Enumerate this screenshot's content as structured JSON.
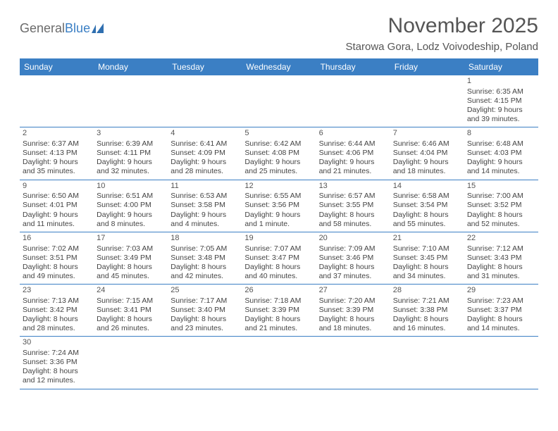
{
  "brand": {
    "part1": "General",
    "part2": "Blue"
  },
  "title": "November 2025",
  "location": "Starowa Gora, Lodz Voivodeship, Poland",
  "colors": {
    "header_bg": "#3b7fc4",
    "header_text": "#ffffff",
    "row_border": "#3b7fc4",
    "text": "#444444",
    "title_text": "#555555"
  },
  "day_headers": [
    "Sunday",
    "Monday",
    "Tuesday",
    "Wednesday",
    "Thursday",
    "Friday",
    "Saturday"
  ],
  "weeks": [
    [
      null,
      null,
      null,
      null,
      null,
      null,
      {
        "n": "1",
        "sunrise": "Sunrise: 6:35 AM",
        "sunset": "Sunset: 4:15 PM",
        "dl1": "Daylight: 9 hours",
        "dl2": "and 39 minutes."
      }
    ],
    [
      {
        "n": "2",
        "sunrise": "Sunrise: 6:37 AM",
        "sunset": "Sunset: 4:13 PM",
        "dl1": "Daylight: 9 hours",
        "dl2": "and 35 minutes."
      },
      {
        "n": "3",
        "sunrise": "Sunrise: 6:39 AM",
        "sunset": "Sunset: 4:11 PM",
        "dl1": "Daylight: 9 hours",
        "dl2": "and 32 minutes."
      },
      {
        "n": "4",
        "sunrise": "Sunrise: 6:41 AM",
        "sunset": "Sunset: 4:09 PM",
        "dl1": "Daylight: 9 hours",
        "dl2": "and 28 minutes."
      },
      {
        "n": "5",
        "sunrise": "Sunrise: 6:42 AM",
        "sunset": "Sunset: 4:08 PM",
        "dl1": "Daylight: 9 hours",
        "dl2": "and 25 minutes."
      },
      {
        "n": "6",
        "sunrise": "Sunrise: 6:44 AM",
        "sunset": "Sunset: 4:06 PM",
        "dl1": "Daylight: 9 hours",
        "dl2": "and 21 minutes."
      },
      {
        "n": "7",
        "sunrise": "Sunrise: 6:46 AM",
        "sunset": "Sunset: 4:04 PM",
        "dl1": "Daylight: 9 hours",
        "dl2": "and 18 minutes."
      },
      {
        "n": "8",
        "sunrise": "Sunrise: 6:48 AM",
        "sunset": "Sunset: 4:03 PM",
        "dl1": "Daylight: 9 hours",
        "dl2": "and 14 minutes."
      }
    ],
    [
      {
        "n": "9",
        "sunrise": "Sunrise: 6:50 AM",
        "sunset": "Sunset: 4:01 PM",
        "dl1": "Daylight: 9 hours",
        "dl2": "and 11 minutes."
      },
      {
        "n": "10",
        "sunrise": "Sunrise: 6:51 AM",
        "sunset": "Sunset: 4:00 PM",
        "dl1": "Daylight: 9 hours",
        "dl2": "and 8 minutes."
      },
      {
        "n": "11",
        "sunrise": "Sunrise: 6:53 AM",
        "sunset": "Sunset: 3:58 PM",
        "dl1": "Daylight: 9 hours",
        "dl2": "and 4 minutes."
      },
      {
        "n": "12",
        "sunrise": "Sunrise: 6:55 AM",
        "sunset": "Sunset: 3:56 PM",
        "dl1": "Daylight: 9 hours",
        "dl2": "and 1 minute."
      },
      {
        "n": "13",
        "sunrise": "Sunrise: 6:57 AM",
        "sunset": "Sunset: 3:55 PM",
        "dl1": "Daylight: 8 hours",
        "dl2": "and 58 minutes."
      },
      {
        "n": "14",
        "sunrise": "Sunrise: 6:58 AM",
        "sunset": "Sunset: 3:54 PM",
        "dl1": "Daylight: 8 hours",
        "dl2": "and 55 minutes."
      },
      {
        "n": "15",
        "sunrise": "Sunrise: 7:00 AM",
        "sunset": "Sunset: 3:52 PM",
        "dl1": "Daylight: 8 hours",
        "dl2": "and 52 minutes."
      }
    ],
    [
      {
        "n": "16",
        "sunrise": "Sunrise: 7:02 AM",
        "sunset": "Sunset: 3:51 PM",
        "dl1": "Daylight: 8 hours",
        "dl2": "and 49 minutes."
      },
      {
        "n": "17",
        "sunrise": "Sunrise: 7:03 AM",
        "sunset": "Sunset: 3:49 PM",
        "dl1": "Daylight: 8 hours",
        "dl2": "and 45 minutes."
      },
      {
        "n": "18",
        "sunrise": "Sunrise: 7:05 AM",
        "sunset": "Sunset: 3:48 PM",
        "dl1": "Daylight: 8 hours",
        "dl2": "and 42 minutes."
      },
      {
        "n": "19",
        "sunrise": "Sunrise: 7:07 AM",
        "sunset": "Sunset: 3:47 PM",
        "dl1": "Daylight: 8 hours",
        "dl2": "and 40 minutes."
      },
      {
        "n": "20",
        "sunrise": "Sunrise: 7:09 AM",
        "sunset": "Sunset: 3:46 PM",
        "dl1": "Daylight: 8 hours",
        "dl2": "and 37 minutes."
      },
      {
        "n": "21",
        "sunrise": "Sunrise: 7:10 AM",
        "sunset": "Sunset: 3:45 PM",
        "dl1": "Daylight: 8 hours",
        "dl2": "and 34 minutes."
      },
      {
        "n": "22",
        "sunrise": "Sunrise: 7:12 AM",
        "sunset": "Sunset: 3:43 PM",
        "dl1": "Daylight: 8 hours",
        "dl2": "and 31 minutes."
      }
    ],
    [
      {
        "n": "23",
        "sunrise": "Sunrise: 7:13 AM",
        "sunset": "Sunset: 3:42 PM",
        "dl1": "Daylight: 8 hours",
        "dl2": "and 28 minutes."
      },
      {
        "n": "24",
        "sunrise": "Sunrise: 7:15 AM",
        "sunset": "Sunset: 3:41 PM",
        "dl1": "Daylight: 8 hours",
        "dl2": "and 26 minutes."
      },
      {
        "n": "25",
        "sunrise": "Sunrise: 7:17 AM",
        "sunset": "Sunset: 3:40 PM",
        "dl1": "Daylight: 8 hours",
        "dl2": "and 23 minutes."
      },
      {
        "n": "26",
        "sunrise": "Sunrise: 7:18 AM",
        "sunset": "Sunset: 3:39 PM",
        "dl1": "Daylight: 8 hours",
        "dl2": "and 21 minutes."
      },
      {
        "n": "27",
        "sunrise": "Sunrise: 7:20 AM",
        "sunset": "Sunset: 3:39 PM",
        "dl1": "Daylight: 8 hours",
        "dl2": "and 18 minutes."
      },
      {
        "n": "28",
        "sunrise": "Sunrise: 7:21 AM",
        "sunset": "Sunset: 3:38 PM",
        "dl1": "Daylight: 8 hours",
        "dl2": "and 16 minutes."
      },
      {
        "n": "29",
        "sunrise": "Sunrise: 7:23 AM",
        "sunset": "Sunset: 3:37 PM",
        "dl1": "Daylight: 8 hours",
        "dl2": "and 14 minutes."
      }
    ],
    [
      {
        "n": "30",
        "sunrise": "Sunrise: 7:24 AM",
        "sunset": "Sunset: 3:36 PM",
        "dl1": "Daylight: 8 hours",
        "dl2": "and 12 minutes."
      },
      null,
      null,
      null,
      null,
      null,
      null
    ]
  ]
}
